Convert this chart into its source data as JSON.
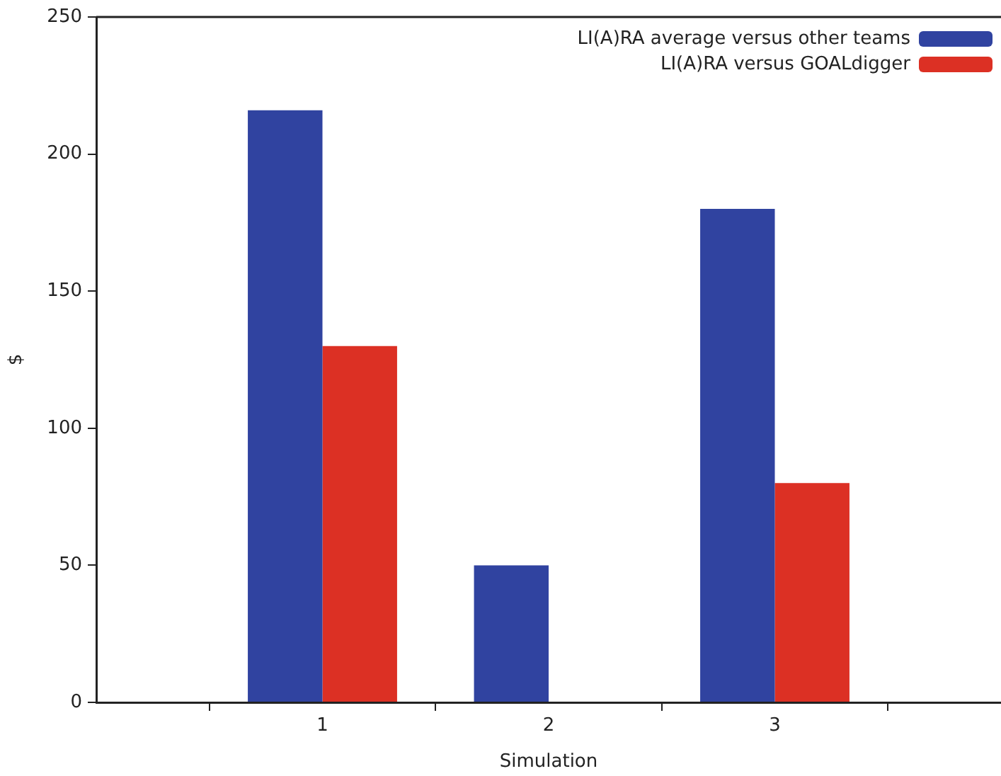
{
  "chart_data": {
    "type": "bar",
    "xlabel": "Simulation",
    "ylabel": "$",
    "categories": [
      "1",
      "2",
      "3"
    ],
    "series": [
      {
        "name": "LI(A)RA average versus other teams",
        "color": "#3043a0",
        "values": [
          216,
          50,
          180
        ]
      },
      {
        "name": "LI(A)RA versus GOALdigger",
        "color": "#dc3024",
        "values": [
          130,
          0,
          80
        ]
      }
    ],
    "ylim": [
      0,
      250
    ],
    "yticks": [
      0,
      50,
      100,
      150,
      200,
      250
    ],
    "grid": false,
    "legend": "top right"
  }
}
